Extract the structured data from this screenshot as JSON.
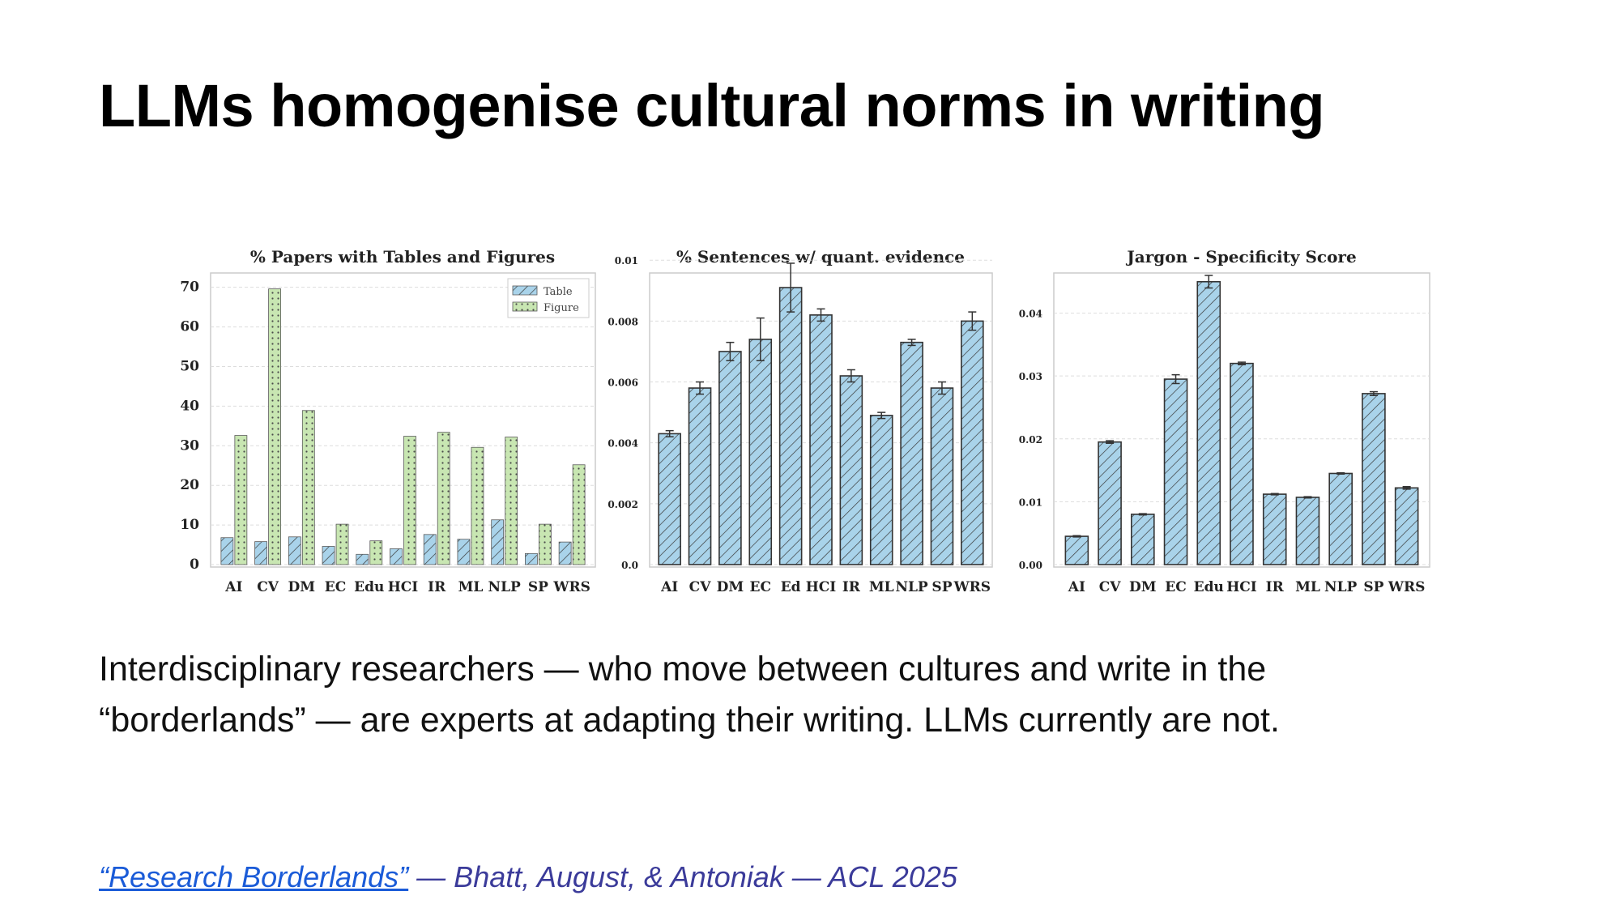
{
  "slide": {
    "title": "LLMs homogenise cultural norms in writing",
    "body_line_1": "Interdisciplinary researchers — who move between cultures and write in the",
    "body_line_2": "“borderlands” — are experts at adapting their writing. LLMs currently are not.",
    "citation_link": "“Research Borderlands”",
    "citation_rest": " — Bhatt, August, & Antoniak — ACL 2025"
  },
  "colors": {
    "table": "#a9d3ea",
    "figure": "#c8e6b2",
    "bar_stroke": "#333333",
    "frame": "#cccccc",
    "grid": "#dddddd",
    "link": "#1a5bd8",
    "citation": "#3b3b9a"
  },
  "chart_data": [
    {
      "type": "bar",
      "title": "% Papers with Tables and Figures",
      "categories": [
        "AI",
        "CV",
        "DM",
        "EC",
        "Edu",
        "HCI",
        "IR",
        "ML",
        "NLP",
        "SP",
        "WRS"
      ],
      "series": [
        {
          "name": "Table",
          "values": [
            6.8,
            5.8,
            7.0,
            4.6,
            2.6,
            4.0,
            7.6,
            6.4,
            11.3,
            2.8,
            5.7
          ]
        },
        {
          "name": "Figure",
          "values": [
            32.6,
            69.6,
            38.9,
            10.2,
            6.0,
            32.4,
            33.4,
            29.6,
            32.2,
            10.2,
            25.2
          ]
        }
      ],
      "yticks": [
        0,
        10,
        20,
        30,
        40,
        50,
        60,
        70
      ],
      "ylim": [
        0,
        73
      ],
      "legend": "top-right",
      "grid": true
    },
    {
      "type": "bar",
      "title": "% Sentences w/ quant. evidence",
      "categories": [
        "AI",
        "CV",
        "DM",
        "EC",
        "Ed",
        "HCI",
        "IR",
        "ML",
        "NLP",
        "SP",
        "WRS"
      ],
      "values": [
        0.0043,
        0.0058,
        0.007,
        0.0074,
        0.0091,
        0.0082,
        0.0062,
        0.0049,
        0.0073,
        0.0058,
        0.008
      ],
      "errors": [
        0.0001,
        0.0002,
        0.0003,
        0.0007,
        0.0008,
        0.0002,
        0.0002,
        0.0001,
        0.0001,
        0.0002,
        0.0003
      ],
      "yticks": [
        0.0,
        0.002,
        0.004,
        0.006,
        0.008,
        0.01
      ],
      "ytick_labels": [
        "0.0",
        "0.002",
        "0.004",
        "0.006",
        "0.008",
        "0.01"
      ],
      "ylim": [
        0,
        0.0095
      ],
      "grid": true
    },
    {
      "type": "bar",
      "title": "Jargon - Specificity Score",
      "categories": [
        "AI",
        "CV",
        "DM",
        "EC",
        "Edu",
        "HCI",
        "IR",
        "ML",
        "NLP",
        "SP",
        "WRS"
      ],
      "values": [
        0.0045,
        0.0195,
        0.008,
        0.0295,
        0.045,
        0.032,
        0.0112,
        0.0107,
        0.0145,
        0.0272,
        0.0122
      ],
      "errors": [
        0.0001,
        0.0002,
        0.0001,
        0.0007,
        0.001,
        0.0002,
        0.0001,
        0.0001,
        0.0001,
        0.0003,
        0.0002
      ],
      "yticks": [
        0.0,
        0.01,
        0.02,
        0.03,
        0.04
      ],
      "ytick_labels": [
        "0.00",
        "0.01",
        "0.02",
        "0.03",
        "0.04"
      ],
      "ylim": [
        0,
        0.046
      ],
      "grid": true
    }
  ]
}
